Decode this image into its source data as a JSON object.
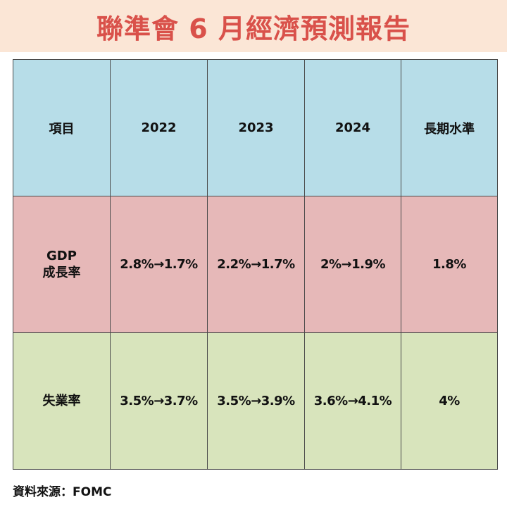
{
  "title": "聯準會 6 月經濟預測報告",
  "table": {
    "headers": [
      "項目",
      "2022",
      "2023",
      "2024",
      "長期水準"
    ],
    "rows": [
      {
        "label_line1": "GDP",
        "label_line2": "成長率",
        "values": [
          "2.8%→1.7%",
          "2.2%→1.7%",
          "2%→1.9%",
          "1.8%"
        ]
      },
      {
        "label_line1": "失業率",
        "label_line2": "",
        "values": [
          "3.5%→3.7%",
          "3.5%→3.9%",
          "3.6%→4.1%",
          "4%"
        ]
      }
    ]
  },
  "source": "資料來源：FOMC",
  "colors": {
    "title_text": "#d9514a",
    "title_banner": "#fbe6d6",
    "header_row": "#b7dde8",
    "gdp_row": "#e6b8b8",
    "unemployment_row": "#d8e4bc"
  }
}
